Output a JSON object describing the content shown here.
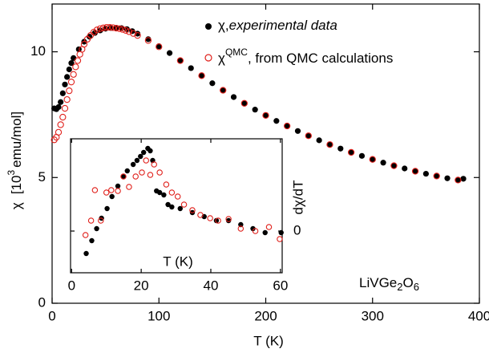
{
  "chart_data": [
    {
      "type": "scatter",
      "xlabel": "T  (K)",
      "ylabel": [
        "χ",
        "[10",
        "3",
        "emu/mol]"
      ],
      "xlim": [
        0,
        400
      ],
      "xticks": [
        0,
        100,
        200,
        300,
        400
      ],
      "ylim": [
        0,
        11.9
      ],
      "yticks": [
        0,
        5,
        10
      ],
      "y_axis_side": "left",
      "annotation": [
        "LiVGe",
        "2",
        "O",
        "6"
      ],
      "series": [
        {
          "name": [
            "χ,",
            "experimental data"
          ],
          "color": "#000000",
          "marker": "filled",
          "x": [
            2,
            4,
            6,
            8,
            10,
            12,
            14,
            16,
            18,
            20,
            25,
            30,
            35,
            40,
            45,
            50,
            55,
            60,
            65,
            70,
            75,
            80,
            90,
            100,
            110,
            120,
            130,
            140,
            150,
            160,
            170,
            180,
            190,
            200,
            210,
            220,
            230,
            240,
            250,
            260,
            270,
            280,
            290,
            300,
            310,
            320,
            330,
            340,
            350,
            360,
            370,
            380,
            385
          ],
          "values": [
            7.75,
            7.72,
            7.8,
            8.0,
            8.35,
            8.7,
            9.0,
            9.3,
            9.55,
            9.75,
            10.1,
            10.4,
            10.6,
            10.75,
            10.85,
            10.92,
            10.95,
            10.95,
            10.94,
            10.9,
            10.82,
            10.72,
            10.5,
            10.22,
            9.95,
            9.65,
            9.35,
            9.05,
            8.75,
            8.47,
            8.2,
            7.95,
            7.7,
            7.47,
            7.25,
            7.05,
            6.85,
            6.66,
            6.48,
            6.31,
            6.15,
            6.0,
            5.86,
            5.72,
            5.59,
            5.47,
            5.36,
            5.25,
            5.15,
            5.06,
            4.97,
            4.9,
            4.95
          ]
        },
        {
          "name": [
            "χ",
            "QMC",
            ", from QMC calculations"
          ],
          "color": "#e0201b",
          "marker": "open",
          "x": [
            2,
            4,
            6,
            8,
            10,
            12,
            14,
            16,
            18,
            20,
            22,
            24,
            26,
            28,
            30,
            33,
            36,
            39,
            42,
            45,
            48,
            51,
            54,
            57,
            60,
            63,
            66,
            69,
            72,
            76,
            80,
            90,
            100,
            120,
            140,
            160,
            180,
            200,
            220,
            240,
            260,
            280,
            300,
            320,
            340,
            360,
            380
          ],
          "values": [
            6.5,
            6.6,
            6.8,
            7.1,
            7.4,
            7.75,
            8.1,
            8.45,
            8.8,
            9.1,
            9.4,
            9.65,
            9.9,
            10.1,
            10.3,
            10.5,
            10.65,
            10.78,
            10.87,
            10.92,
            10.95,
            10.97,
            10.97,
            10.96,
            10.94,
            10.92,
            10.89,
            10.85,
            10.8,
            10.73,
            10.65,
            10.45,
            10.2,
            9.65,
            9.05,
            8.47,
            7.95,
            7.47,
            7.05,
            6.66,
            6.31,
            6.0,
            5.72,
            5.47,
            5.25,
            5.06,
            4.9
          ]
        }
      ]
    },
    {
      "type": "scatter",
      "xlabel": "T (K)",
      "ylabel": "dχ/dT",
      "xlim": [
        -0.3,
        60.5
      ],
      "xticks": [
        0,
        20,
        40,
        60
      ],
      "ylim": [
        -2.6,
        5.75
      ],
      "yticks": [
        0
      ],
      "y_axis_side": "right",
      "series": [
        {
          "color": "#000000",
          "marker": "filled",
          "x": [
            4.2,
            5.8,
            7.2,
            8.6,
            10.2,
            11.6,
            13.3,
            14.9,
            16.0,
            17.7,
            18.8,
            19.8,
            20.7,
            21.9,
            22.6,
            23.3,
            24.4,
            25.3,
            26.5,
            27.7,
            28.8,
            31.2,
            34.7,
            38.1,
            41.6,
            45.1,
            48.6,
            52.1,
            55.6,
            60.2
          ],
          "values": [
            -1.4,
            -0.6,
            0.15,
            0.8,
            1.4,
            2.15,
            2.8,
            3.4,
            3.75,
            4.15,
            4.4,
            4.65,
            4.9,
            5.15,
            5.0,
            4.4,
            2.5,
            2.4,
            2.25,
            1.65,
            1.5,
            1.4,
            1.15,
            0.9,
            0.65,
            0.65,
            0.4,
            0.15,
            -0.1,
            -0.1
          ]
        },
        {
          "color": "#e0201b",
          "marker": "open",
          "x": [
            4.0,
            5.6,
            6.7,
            8.4,
            10.0,
            11.4,
            13.3,
            14.9,
            16.5,
            18.4,
            20.2,
            21.4,
            22.6,
            23.7,
            25.3,
            27.2,
            28.8,
            30.5,
            32.3,
            34.7,
            37.0,
            39.8,
            42.1,
            45.1,
            48.6,
            52.8,
            56.7,
            59.8
          ],
          "values": [
            -0.25,
            0.65,
            2.55,
            0.65,
            2.4,
            2.55,
            2.5,
            3.4,
            2.75,
            3.4,
            3.65,
            4.4,
            3.5,
            4.15,
            3.65,
            2.9,
            2.4,
            2.15,
            1.65,
            1.3,
            1.0,
            0.8,
            0.65,
            0.75,
            0.15,
            0.0,
            0.25,
            -0.5
          ]
        }
      ]
    }
  ]
}
